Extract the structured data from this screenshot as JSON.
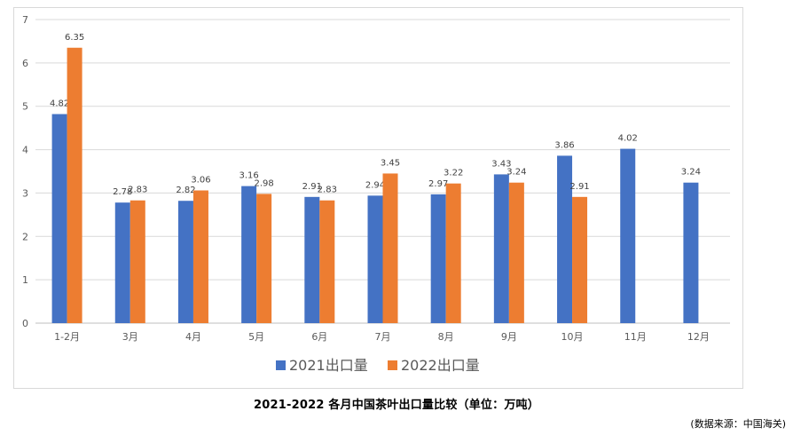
{
  "chart_data": {
    "type": "bar",
    "title": "2021-2022 各月中国茶叶出口量比较（单位：万吨）",
    "source_note": "(数据来源：中国海关)",
    "categories": [
      "1-2月",
      "3月",
      "4月",
      "5月",
      "6月",
      "7月",
      "8月",
      "9月",
      "10月",
      "11月",
      "12月"
    ],
    "series": [
      {
        "name": "2021出口量",
        "color": "#4472C4",
        "values": [
          4.82,
          2.78,
          2.82,
          3.16,
          2.91,
          2.94,
          2.97,
          3.43,
          3.86,
          4.02,
          3.24
        ]
      },
      {
        "name": "2022出口量",
        "color": "#ED7D31",
        "values": [
          6.35,
          2.83,
          3.06,
          2.98,
          2.83,
          3.45,
          3.22,
          3.24,
          2.91,
          null,
          null
        ]
      }
    ],
    "ylim": [
      0,
      7
    ],
    "yticks": [
      0,
      1,
      2,
      3,
      4,
      5,
      6,
      7
    ],
    "xlabel": "",
    "ylabel": "",
    "grid": true,
    "legend_position": "bottom"
  }
}
